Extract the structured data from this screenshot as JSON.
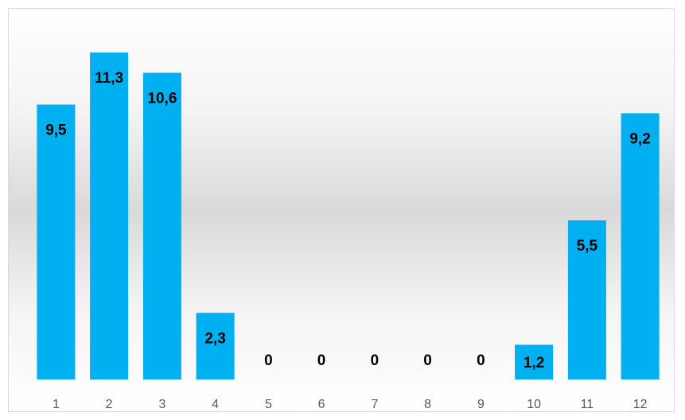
{
  "chart_data": {
    "type": "bar",
    "categories": [
      "1",
      "2",
      "3",
      "4",
      "5",
      "6",
      "7",
      "8",
      "9",
      "10",
      "11",
      "12"
    ],
    "values": [
      9.5,
      11.3,
      10.6,
      2.3,
      0,
      0,
      0,
      0,
      0,
      1.2,
      5.5,
      9.2
    ],
    "data_labels": [
      "9,5",
      "11,3",
      "10,6",
      "2,3",
      "0",
      "0",
      "0",
      "0",
      "0",
      "1,2",
      "5,5",
      "9,2"
    ],
    "title": "",
    "xlabel": "",
    "ylabel": "",
    "ylim": [
      0,
      11.3
    ],
    "grid": false,
    "legend": "none",
    "colors": {
      "bar": "#00b0f0",
      "tick_text": "#595959",
      "label_text": "#000000",
      "frame_border": "#d9d9d9"
    }
  }
}
